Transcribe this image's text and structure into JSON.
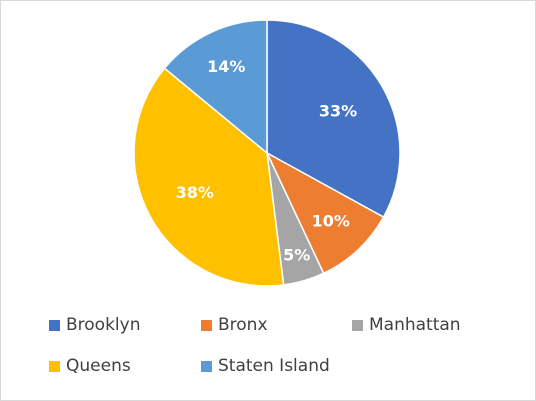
{
  "chart_data": {
    "type": "pie",
    "title": "",
    "categories": [
      "Brooklyn",
      "Bronx",
      "Manhattan",
      "Queens",
      "Staten Island"
    ],
    "values": [
      33,
      10,
      5,
      38,
      14
    ],
    "labels": [
      "33%",
      "10%",
      "5%",
      "38%",
      "14%"
    ],
    "colors": [
      "#4472C4",
      "#ED7D31",
      "#A5A5A5",
      "#FFC000",
      "#5B9BD5"
    ],
    "legend_position": "bottom"
  }
}
